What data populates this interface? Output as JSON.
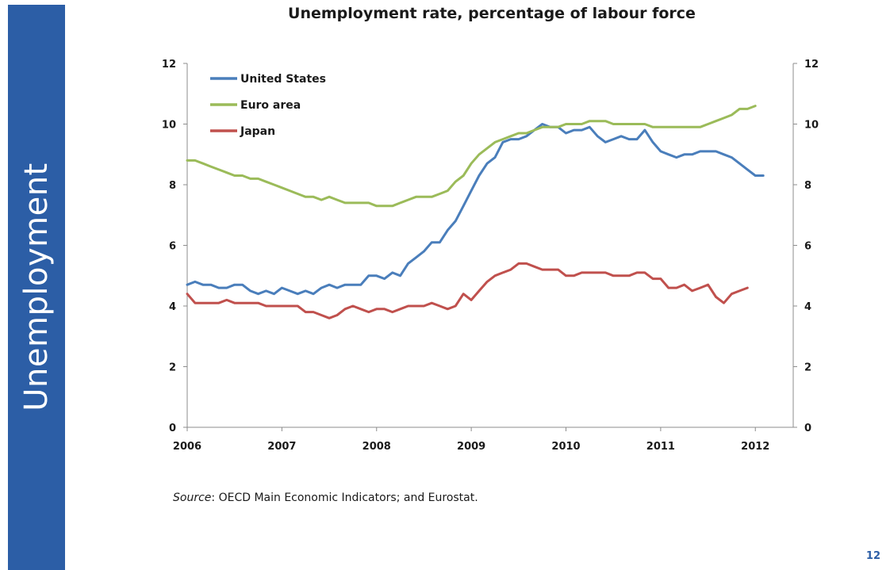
{
  "slide": {
    "side_title": "Unemployment",
    "source_label": "Source",
    "source_text": ": OECD Main Economic Indicators; and Eurostat.",
    "page_number": "12",
    "colors": {
      "band": "#2c5ea6"
    }
  },
  "chart_data": {
    "type": "line",
    "title": "Unemployment rate, percentage of labour force",
    "xlabel": "",
    "ylabel": "",
    "xlim": [
      2006,
      2012.4
    ],
    "ylim": [
      0,
      12
    ],
    "yticks": [
      0,
      2,
      4,
      6,
      8,
      10,
      12
    ],
    "xticks": [
      "2006",
      "2007",
      "2008",
      "2009",
      "2010",
      "2011",
      "2012"
    ],
    "grid": false,
    "legend_position": "top-left",
    "secondary_y_axis": true,
    "series": [
      {
        "name": "United States",
        "color": "#4a7ebb",
        "x": [
          2006,
          2006.083,
          2006.167,
          2006.25,
          2006.333,
          2006.417,
          2006.5,
          2006.583,
          2006.667,
          2006.75,
          2006.833,
          2006.917,
          2007,
          2007.083,
          2007.167,
          2007.25,
          2007.333,
          2007.417,
          2007.5,
          2007.583,
          2007.667,
          2007.75,
          2007.833,
          2007.917,
          2008,
          2008.083,
          2008.167,
          2008.25,
          2008.333,
          2008.417,
          2008.5,
          2008.583,
          2008.667,
          2008.75,
          2008.833,
          2008.917,
          2009,
          2009.083,
          2009.167,
          2009.25,
          2009.333,
          2009.417,
          2009.5,
          2009.583,
          2009.667,
          2009.75,
          2009.833,
          2009.917,
          2010,
          2010.083,
          2010.167,
          2010.25,
          2010.333,
          2010.417,
          2010.5,
          2010.583,
          2010.667,
          2010.75,
          2010.833,
          2010.917,
          2011,
          2011.083,
          2011.167,
          2011.25,
          2011.333,
          2011.417,
          2011.5,
          2011.583,
          2011.667,
          2011.75,
          2011.833,
          2011.917,
          2012,
          2012.083
        ],
        "values": [
          4.7,
          4.8,
          4.7,
          4.7,
          4.6,
          4.6,
          4.7,
          4.7,
          4.5,
          4.4,
          4.5,
          4.4,
          4.6,
          4.5,
          4.4,
          4.5,
          4.4,
          4.6,
          4.7,
          4.6,
          4.7,
          4.7,
          4.7,
          5.0,
          5.0,
          4.9,
          5.1,
          5.0,
          5.4,
          5.6,
          5.8,
          6.1,
          6.1,
          6.5,
          6.8,
          7.3,
          7.8,
          8.3,
          8.7,
          8.9,
          9.4,
          9.5,
          9.5,
          9.6,
          9.8,
          10.0,
          9.9,
          9.9,
          9.7,
          9.8,
          9.8,
          9.9,
          9.6,
          9.4,
          9.5,
          9.6,
          9.5,
          9.5,
          9.8,
          9.4,
          9.1,
          9.0,
          8.9,
          9.0,
          9.0,
          9.1,
          9.1,
          9.1,
          9.0,
          8.9,
          8.7,
          8.5,
          8.3,
          8.3
        ]
      },
      {
        "name": "Euro area",
        "color": "#9bbb59",
        "x": [
          2006,
          2006.083,
          2006.167,
          2006.25,
          2006.333,
          2006.417,
          2006.5,
          2006.583,
          2006.667,
          2006.75,
          2006.833,
          2006.917,
          2007,
          2007.083,
          2007.167,
          2007.25,
          2007.333,
          2007.417,
          2007.5,
          2007.583,
          2007.667,
          2007.75,
          2007.833,
          2007.917,
          2008,
          2008.083,
          2008.167,
          2008.25,
          2008.333,
          2008.417,
          2008.5,
          2008.583,
          2008.667,
          2008.75,
          2008.833,
          2008.917,
          2009,
          2009.083,
          2009.167,
          2009.25,
          2009.333,
          2009.417,
          2009.5,
          2009.583,
          2009.667,
          2009.75,
          2009.833,
          2009.917,
          2010,
          2010.083,
          2010.167,
          2010.25,
          2010.333,
          2010.417,
          2010.5,
          2010.583,
          2010.667,
          2010.75,
          2010.833,
          2010.917,
          2011,
          2011.083,
          2011.167,
          2011.25,
          2011.333,
          2011.417,
          2011.5,
          2011.583,
          2011.667,
          2011.75,
          2011.833,
          2011.917,
          2012
        ],
        "values": [
          8.8,
          8.8,
          8.7,
          8.6,
          8.5,
          8.4,
          8.3,
          8.3,
          8.2,
          8.2,
          8.1,
          8.0,
          7.9,
          7.8,
          7.7,
          7.6,
          7.6,
          7.5,
          7.6,
          7.5,
          7.4,
          7.4,
          7.4,
          7.4,
          7.3,
          7.3,
          7.3,
          7.4,
          7.5,
          7.6,
          7.6,
          7.6,
          7.7,
          7.8,
          8.1,
          8.3,
          8.7,
          9.0,
          9.2,
          9.4,
          9.5,
          9.6,
          9.7,
          9.7,
          9.8,
          9.9,
          9.9,
          9.9,
          10.0,
          10.0,
          10.0,
          10.1,
          10.1,
          10.1,
          10.0,
          10.0,
          10.0,
          10.0,
          10.0,
          9.9,
          9.9,
          9.9,
          9.9,
          9.9,
          9.9,
          9.9,
          10.0,
          10.1,
          10.2,
          10.3,
          10.5,
          10.5,
          10.6
        ]
      },
      {
        "name": "Japan",
        "color": "#c0504d",
        "x": [
          2006,
          2006.083,
          2006.167,
          2006.25,
          2006.333,
          2006.417,
          2006.5,
          2006.583,
          2006.667,
          2006.75,
          2006.833,
          2006.917,
          2007,
          2007.083,
          2007.167,
          2007.25,
          2007.333,
          2007.417,
          2007.5,
          2007.583,
          2007.667,
          2007.75,
          2007.833,
          2007.917,
          2008,
          2008.083,
          2008.167,
          2008.25,
          2008.333,
          2008.417,
          2008.5,
          2008.583,
          2008.667,
          2008.75,
          2008.833,
          2008.917,
          2009,
          2009.083,
          2009.167,
          2009.25,
          2009.333,
          2009.417,
          2009.5,
          2009.583,
          2009.667,
          2009.75,
          2009.833,
          2009.917,
          2010,
          2010.083,
          2010.167,
          2010.25,
          2010.333,
          2010.417,
          2010.5,
          2010.583,
          2010.667,
          2010.75,
          2010.833,
          2010.917,
          2011,
          2011.083,
          2011.167,
          2011.25,
          2011.333,
          2011.417,
          2011.5,
          2011.583,
          2011.667,
          2011.75,
          2011.833,
          2011.917
        ],
        "values": [
          4.4,
          4.1,
          4.1,
          4.1,
          4.1,
          4.2,
          4.1,
          4.1,
          4.1,
          4.1,
          4.0,
          4.0,
          4.0,
          4.0,
          4.0,
          3.8,
          3.8,
          3.7,
          3.6,
          3.7,
          3.9,
          4.0,
          3.9,
          3.8,
          3.9,
          3.9,
          3.8,
          3.9,
          4.0,
          4.0,
          4.0,
          4.1,
          4.0,
          3.9,
          4.0,
          4.4,
          4.2,
          4.5,
          4.8,
          5.0,
          5.1,
          5.2,
          5.4,
          5.4,
          5.3,
          5.2,
          5.2,
          5.2,
          5.0,
          5.0,
          5.1,
          5.1,
          5.1,
          5.1,
          5.0,
          5.0,
          5.0,
          5.1,
          5.1,
          4.9,
          4.9,
          4.6,
          4.6,
          4.7,
          4.5,
          4.6,
          4.7,
          4.3,
          4.1,
          4.4,
          4.5,
          4.6
        ]
      }
    ]
  }
}
